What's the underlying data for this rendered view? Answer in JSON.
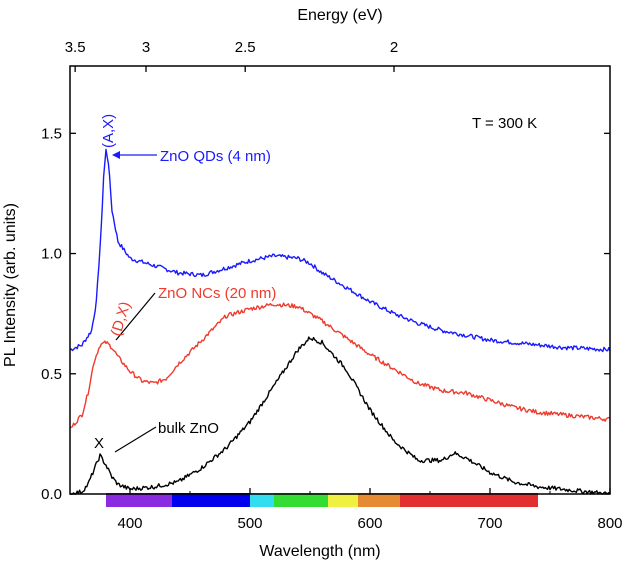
{
  "chart_data": {
    "type": "line",
    "xlabel": "Wavelength (nm)",
    "ylabel": "PL Intensity (arb. units)",
    "x2label": "Energy (eV)",
    "xlim": [
      350,
      800
    ],
    "ylim": [
      0,
      1.78
    ],
    "x_ticks": [
      400,
      500,
      600,
      700,
      800
    ],
    "y_ticks": [
      0.0,
      0.5,
      1.0,
      1.5
    ],
    "x_tick_labels": [
      "400",
      "500",
      "600",
      "700",
      "800"
    ],
    "y_tick_labels": [
      "0.0",
      "0.5",
      "1.0",
      "1.5"
    ],
    "x2_ticks": [
      3.5,
      3,
      2.5,
      2
    ],
    "x2_tick_labels": [
      "3.5",
      "3",
      "2.5",
      "2"
    ],
    "grid": false,
    "legend": "none",
    "annotations": [
      {
        "text": "T = 300 K",
        "color": "#000000"
      },
      {
        "text": "ZnO QDs (4 nm)",
        "color": "#1a1aff"
      },
      {
        "text": "(A,X)",
        "color": "#1a1aff"
      },
      {
        "text": "ZnO NCs (20 nm)",
        "color": "#ee3b2e"
      },
      {
        "text": "(D,X)",
        "color": "#ee3b2e"
      },
      {
        "text": "bulk ZnO",
        "color": "#000000"
      },
      {
        "text": "X",
        "color": "#000000"
      }
    ],
    "spectrum_bar": [
      {
        "from": 380,
        "to": 435,
        "color": "#8a2be2"
      },
      {
        "from": 435,
        "to": 500,
        "color": "#0000ee"
      },
      {
        "from": 500,
        "to": 520,
        "color": "#33ddf0"
      },
      {
        "from": 520,
        "to": 565,
        "color": "#33dd33"
      },
      {
        "from": 565,
        "to": 590,
        "color": "#f0f040"
      },
      {
        "from": 590,
        "to": 625,
        "color": "#e68a33"
      },
      {
        "from": 625,
        "to": 740,
        "color": "#e22f2f"
      }
    ],
    "series": [
      {
        "color": "#1a1aff",
        "x": [
          350,
          360,
          368,
          372,
          376,
          378,
          380,
          382,
          385,
          390,
          400,
          420,
          440,
          460,
          480,
          500,
          520,
          540,
          550,
          560,
          580,
          600,
          620,
          640,
          660,
          680,
          700,
          720,
          740,
          760,
          780,
          800
        ],
        "y": [
          0.6,
          0.62,
          0.68,
          0.8,
          1.1,
          1.32,
          1.43,
          1.38,
          1.18,
          1.05,
          0.98,
          0.95,
          0.92,
          0.91,
          0.94,
          0.97,
          0.99,
          0.98,
          0.96,
          0.92,
          0.86,
          0.8,
          0.75,
          0.71,
          0.68,
          0.66,
          0.64,
          0.63,
          0.62,
          0.61,
          0.605,
          0.6
        ]
      },
      {
        "color": "#ee3b2e",
        "x": [
          350,
          360,
          365,
          370,
          375,
          380,
          385,
          390,
          400,
          410,
          420,
          430,
          440,
          460,
          480,
          500,
          520,
          540,
          560,
          580,
          600,
          620,
          640,
          660,
          680,
          700,
          720,
          740,
          760,
          780,
          800
        ],
        "y": [
          0.27,
          0.33,
          0.42,
          0.55,
          0.62,
          0.63,
          0.61,
          0.57,
          0.51,
          0.47,
          0.46,
          0.48,
          0.54,
          0.64,
          0.74,
          0.77,
          0.79,
          0.78,
          0.72,
          0.65,
          0.58,
          0.52,
          0.46,
          0.43,
          0.42,
          0.39,
          0.36,
          0.34,
          0.33,
          0.32,
          0.31
        ]
      },
      {
        "color": "#000000",
        "x": [
          350,
          360,
          365,
          370,
          375,
          380,
          385,
          390,
          400,
          420,
          440,
          460,
          480,
          500,
          520,
          540,
          550,
          560,
          580,
          600,
          620,
          640,
          660,
          670,
          680,
          690,
          700,
          720,
          740,
          760,
          780,
          800
        ],
        "y": [
          0.0,
          0.01,
          0.04,
          0.1,
          0.16,
          0.12,
          0.07,
          0.04,
          0.02,
          0.03,
          0.05,
          0.11,
          0.19,
          0.3,
          0.45,
          0.6,
          0.65,
          0.63,
          0.52,
          0.35,
          0.22,
          0.14,
          0.14,
          0.17,
          0.15,
          0.12,
          0.09,
          0.05,
          0.03,
          0.02,
          0.01,
          0.0
        ]
      }
    ]
  }
}
